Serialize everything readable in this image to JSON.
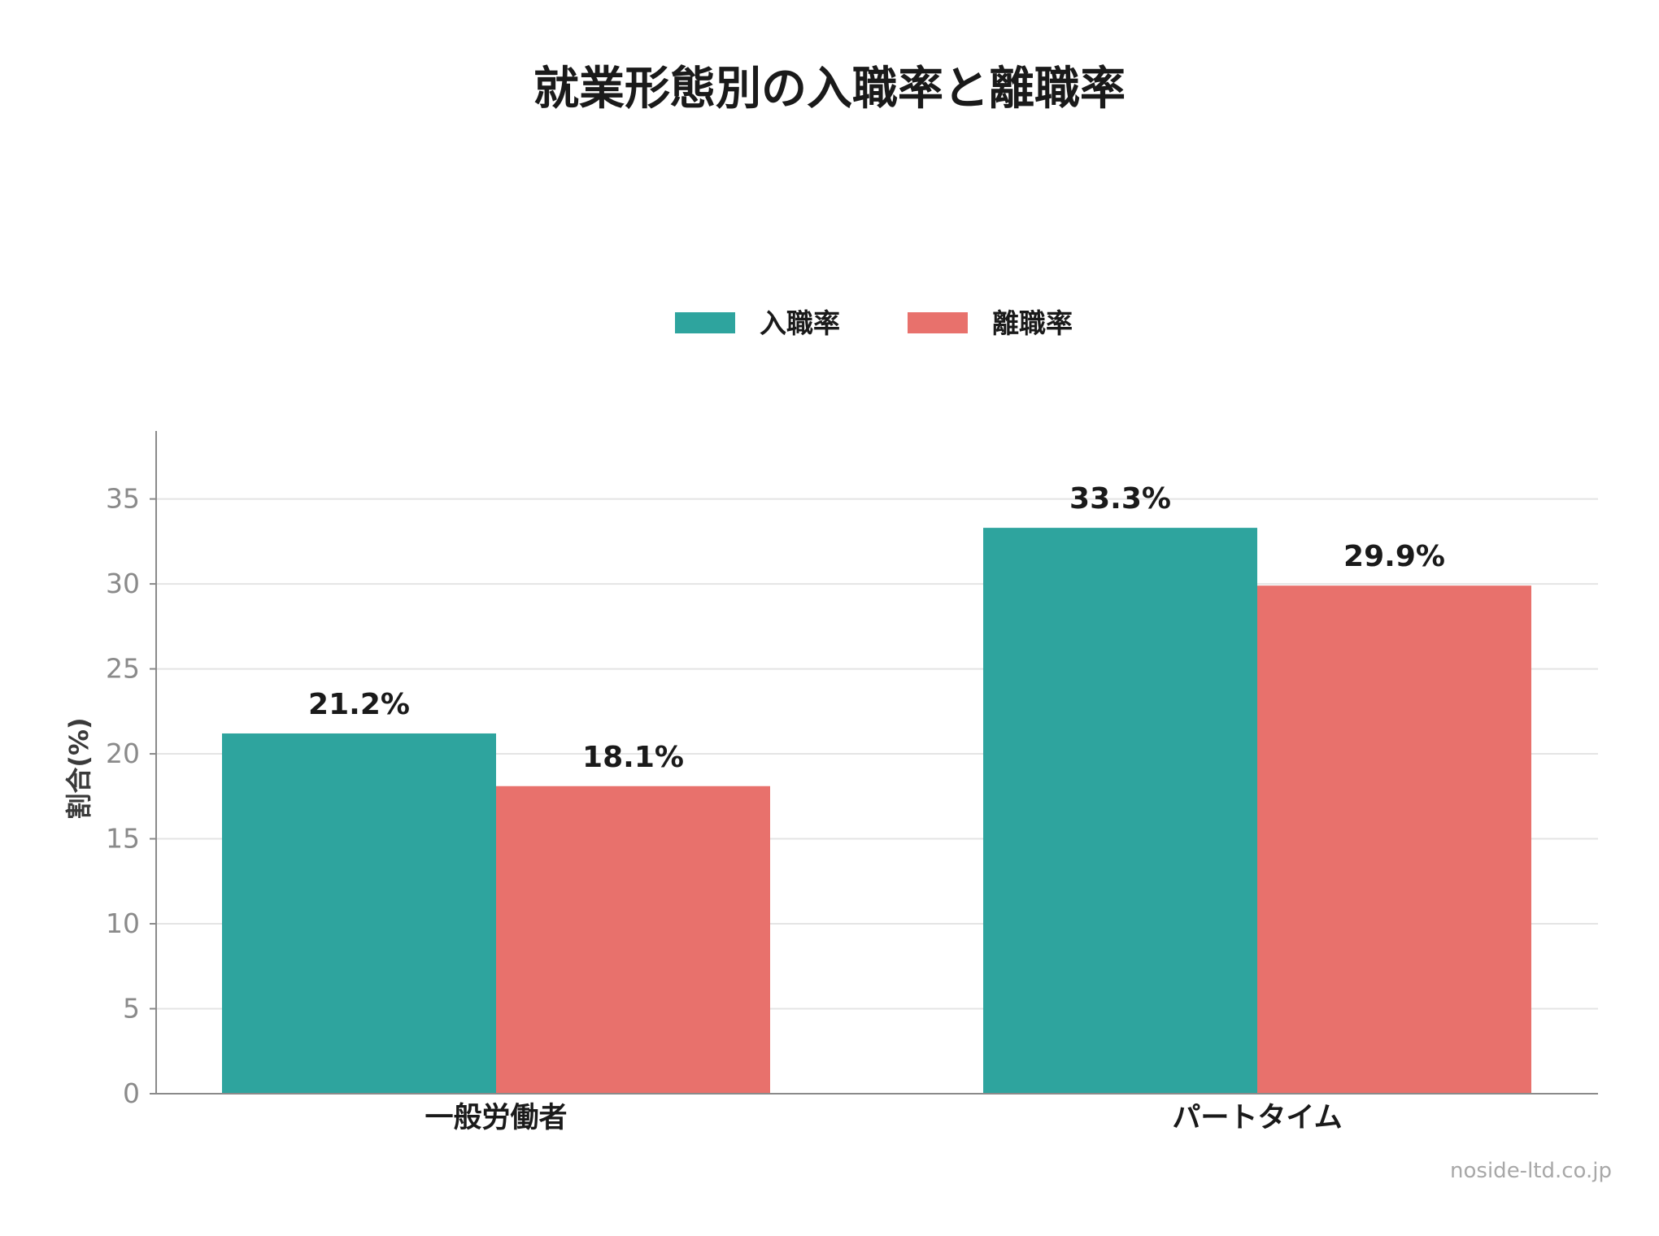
{
  "chart_data": {
    "type": "bar",
    "title": "就業形態別の入職率と離職率",
    "xlabel": "",
    "ylabel": "割合(%)",
    "categories": [
      "一般労働者",
      "パートタイム"
    ],
    "series": [
      {
        "name": "入職率",
        "values": [
          21.2,
          33.3
        ],
        "labels": [
          "21.2%",
          "33.3%"
        ],
        "color": "#2ea49e"
      },
      {
        "name": "離職率",
        "values": [
          18.1,
          29.9
        ],
        "labels": [
          "18.1%",
          "29.9%"
        ],
        "color": "#e8716c"
      }
    ],
    "ylim": [
      0,
      39
    ],
    "yticks": [
      0,
      5,
      10,
      15,
      20,
      25,
      30,
      35
    ],
    "grid": true,
    "legend": "top-center"
  },
  "footer": {
    "watermark": "noside-ltd.co.jp"
  }
}
